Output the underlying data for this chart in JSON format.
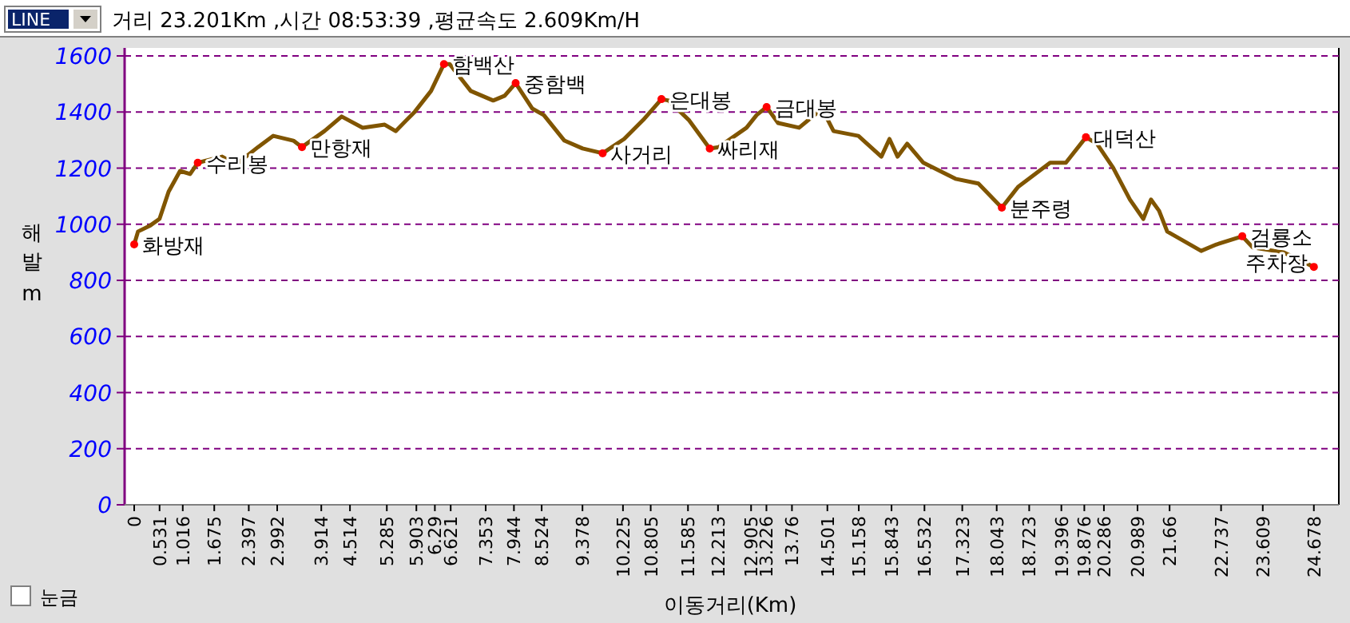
{
  "chart_data": {
    "type": "line",
    "title": "거리 23.201Km ,시간 08:53:39 ,평균속도 2.609Km/H",
    "xlabel": "이동거리(Km)",
    "ylabel": "해발 m",
    "xlim": [
      -0.1,
      25.2
    ],
    "xticks": [
      0,
      0.531,
      1.016,
      1.675,
      2.397,
      2.992,
      3.914,
      4.514,
      5.285,
      5.903,
      6.29,
      6.621,
      7.353,
      7.944,
      8.524,
      9.378,
      10.225,
      10.805,
      11.585,
      12.213,
      12.905,
      13.226,
      13.76,
      14.501,
      15.158,
      15.843,
      16.532,
      17.323,
      18.043,
      18.723,
      19.396,
      19.876,
      20.286,
      20.989,
      21.66,
      22.737,
      23.609,
      24.678
    ],
    "ylim": [
      0,
      1600
    ],
    "yticks": [
      0,
      200,
      400,
      600,
      800,
      1000,
      1200,
      1400,
      1600
    ],
    "grid": "y",
    "line_style": "solid",
    "series": [
      {
        "color": "#805500",
        "x": [
          0,
          0.08,
          0.34,
          0.53,
          0.72,
          0.96,
          1.17,
          1.33,
          1.84,
          2.13,
          2.59,
          2.91,
          3.33,
          3.51,
          3.98,
          4.34,
          4.78,
          5.24,
          5.47,
          5.87,
          6.21,
          6.48,
          6.6,
          7.04,
          7.51,
          7.75,
          7.98,
          8.33,
          8.57,
          9.0,
          9.38,
          9.8,
          10.25,
          10.65,
          11.03,
          11.18,
          11.6,
          12.04,
          12.23,
          12.81,
          13.02,
          13.23,
          13.47,
          13.91,
          14.39,
          14.63,
          15.15,
          15.63,
          15.8,
          15.97,
          16.17,
          16.51,
          17.18,
          17.66,
          18.15,
          18.49,
          19.16,
          19.49,
          19.91,
          20.14,
          20.48,
          20.83,
          21.11,
          21.27,
          21.44,
          21.61,
          22.32,
          22.64,
          23.18,
          23.4,
          24.04,
          24.678
        ],
        "values": [
          928,
          974,
          996,
          1019,
          1116,
          1190,
          1179,
          1219,
          1241,
          1213,
          1275,
          1315,
          1298,
          1275,
          1332,
          1384,
          1344,
          1355,
          1332,
          1401,
          1475,
          1571,
          1571,
          1475,
          1441,
          1458,
          1503,
          1412,
          1389,
          1298,
          1270,
          1253,
          1304,
          1372,
          1446,
          1441,
          1372,
          1270,
          1275,
          1344,
          1389,
          1418,
          1361,
          1344,
          1412,
          1332,
          1315,
          1241,
          1304,
          1241,
          1287,
          1219,
          1162,
          1145,
          1059,
          1133,
          1219,
          1219,
          1310,
          1287,
          1201,
          1088,
          1019,
          1088,
          1048,
          974,
          905,
          928,
          957,
          917,
          900,
          848
        ]
      }
    ],
    "annotations": [
      "LINE",
      "눈금",
      {
        "text": "화방재",
        "x": 0,
        "y": 928
      },
      {
        "text": "수리봉",
        "x": 1.33,
        "y": 1219
      },
      {
        "text": "만항재",
        "x": 3.51,
        "y": 1275
      },
      {
        "text": "함백산",
        "x": 6.48,
        "y": 1571
      },
      {
        "text": "중함백",
        "x": 7.98,
        "y": 1503
      },
      {
        "text": "사거리",
        "x": 9.8,
        "y": 1253
      },
      {
        "text": "은대봉",
        "x": 11.03,
        "y": 1446
      },
      {
        "text": "싸리재",
        "x": 12.04,
        "y": 1270
      },
      {
        "text": "금대봉",
        "x": 13.23,
        "y": 1418
      },
      {
        "text": "분주령",
        "x": 18.15,
        "y": 1059
      },
      {
        "text": "대덕산",
        "x": 19.91,
        "y": 1310
      },
      {
        "text": "검룡소",
        "x": 23.18,
        "y": 957
      },
      {
        "text": "주차장",
        "x": 24.678,
        "y": 848
      }
    ]
  }
}
